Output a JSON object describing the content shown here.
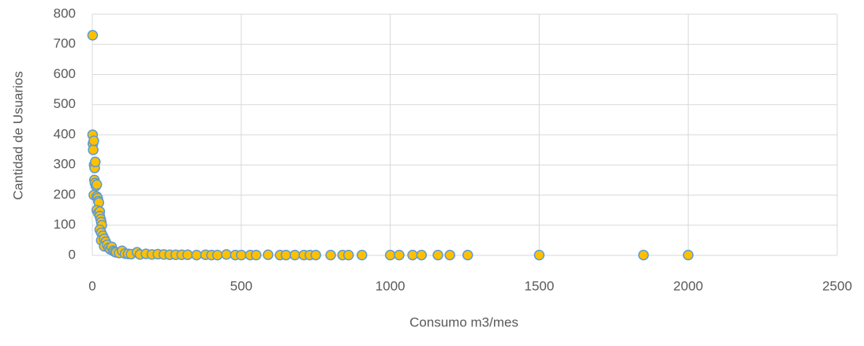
{
  "chart_data": {
    "type": "scatter",
    "xlabel": "Consumo m3/mes",
    "ylabel": "Cantidad de Usuarios",
    "xlim": [
      0,
      2500
    ],
    "xticks": [
      0,
      500,
      1000,
      1500,
      2000,
      2500
    ],
    "ylim": [
      0,
      800
    ],
    "yticks": [
      0,
      100,
      200,
      300,
      400,
      500,
      600,
      700,
      800
    ],
    "grid": true,
    "color": "#ffc000",
    "edge_color": "#5b9bd5",
    "x": [
      1,
      1,
      2,
      3,
      5,
      6,
      8,
      10,
      7,
      9,
      12,
      15,
      5,
      15,
      18,
      20,
      22,
      15,
      20,
      25,
      25,
      28,
      30,
      32,
      25,
      30,
      35,
      30,
      40,
      45,
      40,
      50,
      55,
      60,
      65,
      70,
      75,
      80,
      90,
      100,
      110,
      120,
      130,
      150,
      160,
      180,
      200,
      220,
      240,
      260,
      280,
      300,
      320,
      350,
      380,
      400,
      420,
      450,
      480,
      500,
      530,
      550,
      590,
      630,
      650,
      680,
      710,
      730,
      750,
      800,
      840,
      860,
      905,
      1000,
      1030,
      1075,
      1105,
      1160,
      1200,
      1260,
      1500,
      1850,
      2000
    ],
    "values": [
      730,
      400,
      370,
      350,
      380,
      300,
      290,
      310,
      250,
      240,
      230,
      235,
      200,
      195,
      190,
      180,
      175,
      150,
      140,
      145,
      130,
      120,
      110,
      100,
      85,
      75,
      65,
      50,
      55,
      45,
      30,
      35,
      25,
      20,
      28,
      15,
      12,
      10,
      8,
      15,
      6,
      5,
      4,
      10,
      3,
      5,
      3,
      4,
      3,
      2,
      2,
      2,
      2,
      1,
      2,
      1,
      1,
      3,
      1,
      1,
      1,
      1,
      2,
      1,
      1,
      1,
      1,
      1,
      1,
      1,
      1,
      1,
      1,
      1,
      1,
      1,
      1,
      1,
      1,
      1,
      1,
      1,
      1
    ]
  }
}
